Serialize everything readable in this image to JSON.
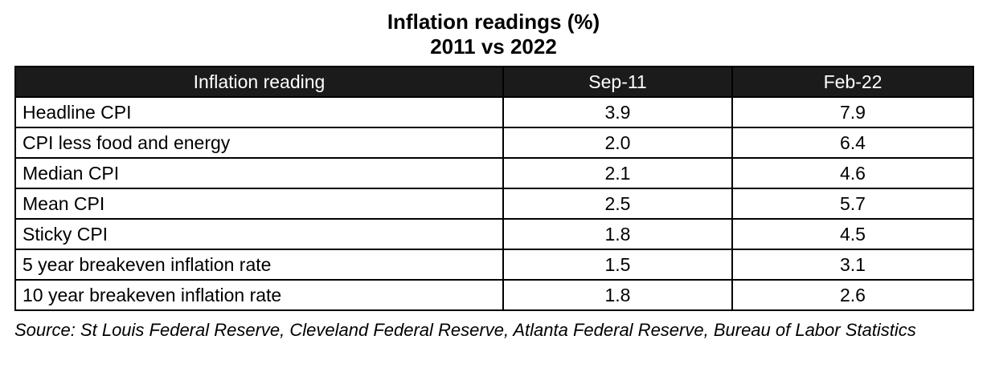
{
  "title": {
    "line1": "Inflation readings (%)",
    "line2": "2011 vs 2022"
  },
  "table": {
    "headers": [
      "Inflation reading",
      "Sep-11",
      "Feb-22"
    ],
    "rows": [
      {
        "label": "Headline CPI",
        "sep11": "3.9",
        "feb22": "7.9"
      },
      {
        "label": "CPI less food and energy",
        "sep11": "2.0",
        "feb22": "6.4"
      },
      {
        "label": "Median CPI",
        "sep11": "2.1",
        "feb22": "4.6"
      },
      {
        "label": "Mean CPI",
        "sep11": "2.5",
        "feb22": "5.7"
      },
      {
        "label": "Sticky CPI",
        "sep11": "1.8",
        "feb22": "4.5"
      },
      {
        "label": "5 year breakeven inflation rate",
        "sep11": "1.5",
        "feb22": "3.1"
      },
      {
        "label": "10 year breakeven inflation rate",
        "sep11": "1.8",
        "feb22": "2.6"
      }
    ]
  },
  "source": "Source: St Louis Federal Reserve, Cleveland Federal Reserve, Atlanta Federal Reserve, Bureau of Labor Statistics",
  "colors": {
    "header_bg": "#1b1b1b",
    "header_text": "#ffffff",
    "border": "#000000",
    "body_bg": "#ffffff",
    "body_text": "#000000"
  },
  "chart_data": {
    "type": "table",
    "title": "Inflation readings (%) 2011 vs 2022",
    "columns": [
      "Inflation reading",
      "Sep-11",
      "Feb-22"
    ],
    "rows": [
      {
        "reading": "Headline CPI",
        "sep_11": 3.9,
        "feb_22": 7.9
      },
      {
        "reading": "CPI less food and energy",
        "sep_11": 2.0,
        "feb_22": 6.4
      },
      {
        "reading": "Median CPI",
        "sep_11": 2.1,
        "feb_22": 4.6
      },
      {
        "reading": "Mean CPI",
        "sep_11": 2.5,
        "feb_22": 5.7
      },
      {
        "reading": "Sticky CPI",
        "sep_11": 1.8,
        "feb_22": 4.5
      },
      {
        "reading": "5 year breakeven inflation rate",
        "sep_11": 1.5,
        "feb_22": 3.1
      },
      {
        "reading": "10 year breakeven inflation rate",
        "sep_11": 1.8,
        "feb_22": 2.6
      }
    ],
    "source": "St Louis Federal Reserve, Cleveland Federal Reserve, Atlanta Federal Reserve, Bureau of Labor Statistics"
  }
}
